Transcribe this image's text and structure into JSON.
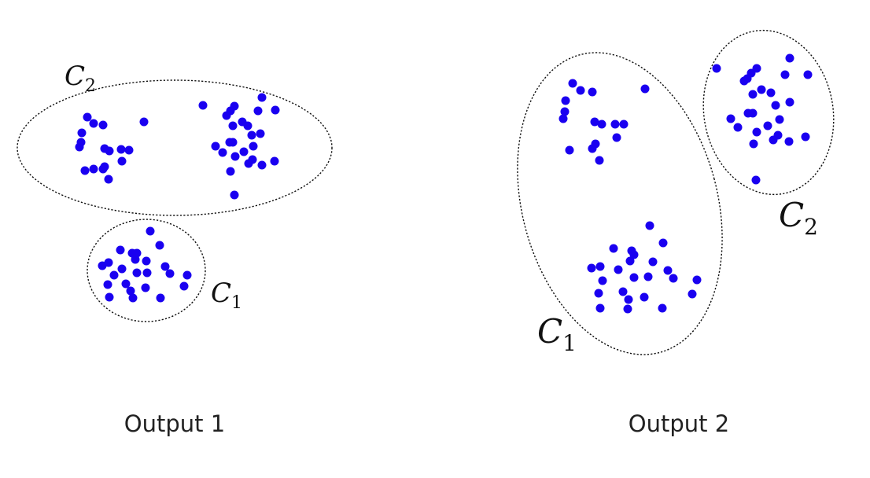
{
  "colors": {
    "point": "#1a00f0",
    "outline": "#111111",
    "caption": "#222222",
    "background": "#ffffff"
  },
  "panels": [
    {
      "caption": "Output 1",
      "clusters": [
        {
          "symbol": "C",
          "subscript": "2"
        },
        {
          "symbol": "C",
          "subscript": "1"
        }
      ]
    },
    {
      "caption": "Output 2",
      "clusters": [
        {
          "symbol": "C",
          "subscript": "1"
        },
        {
          "symbol": "C",
          "subscript": "2"
        }
      ]
    }
  ]
}
